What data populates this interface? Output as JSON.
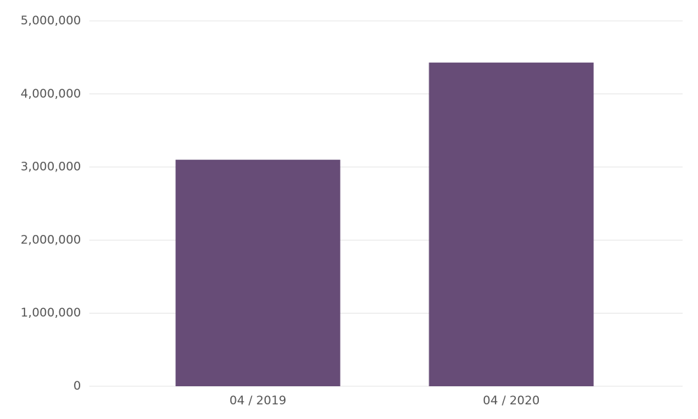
{
  "chart_data": {
    "type": "bar",
    "categories": [
      "04 / 2019",
      "04 / 2020"
    ],
    "values": [
      3100000,
      4430000
    ],
    "color": "#674c77",
    "ylim": [
      0,
      5000000
    ],
    "yticks": [
      0,
      {
        "value": 1000000,
        "label": "1,000,000"
      },
      {
        "value": 2000000,
        "label": "2,000,000"
      },
      {
        "value": 3000000,
        "label": "3,000,000"
      },
      {
        "value": 4000000,
        "label": "4,000,000"
      },
      {
        "value": 5000000,
        "label": "5,000,000"
      }
    ],
    "grid": true
  }
}
